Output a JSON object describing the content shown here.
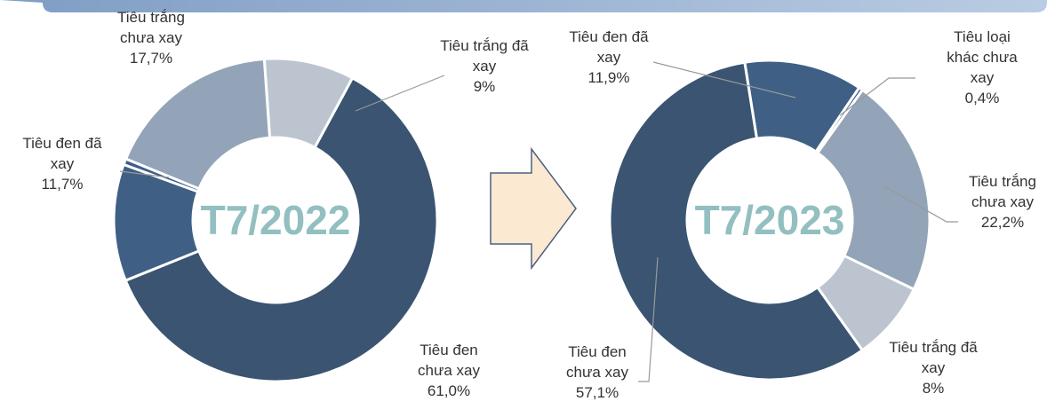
{
  "chart_data": [
    {
      "type": "donut",
      "center_label": "T7/2022",
      "categories": [
        "Tiêu trắng đã xay",
        "Tiêu đen chưa xay",
        "Tiêu đen đã xay",
        null,
        "Tiêu trắng chưa xay"
      ],
      "values": [
        9,
        61.0,
        11.7,
        0.6,
        17.7
      ],
      "value_labels": [
        "9%",
        "61,0%",
        "11,7%",
        null,
        "17,7%"
      ],
      "colors": [
        "#bcc4d0",
        "#3a5472",
        "#3f5f85",
        "#3f5f85",
        "#93a4b8"
      ]
    },
    {
      "type": "donut",
      "center_label": "T7/2023",
      "categories": [
        "Tiêu đen đã xay",
        "Tiêu loại khác chưa xay",
        "Tiêu trắng chưa xay",
        "Tiêu trắng đã xay",
        "Tiêu đen chưa xay"
      ],
      "values": [
        11.9,
        0.4,
        22.2,
        8,
        57.1
      ],
      "value_labels": [
        "11,9%",
        "0,4%",
        "22,2%",
        "8%",
        "57,1%"
      ],
      "colors": [
        "#3f5f85",
        "#3f5f85",
        "#93a4b8",
        "#bcc4d0",
        "#3a5472"
      ]
    }
  ]
}
